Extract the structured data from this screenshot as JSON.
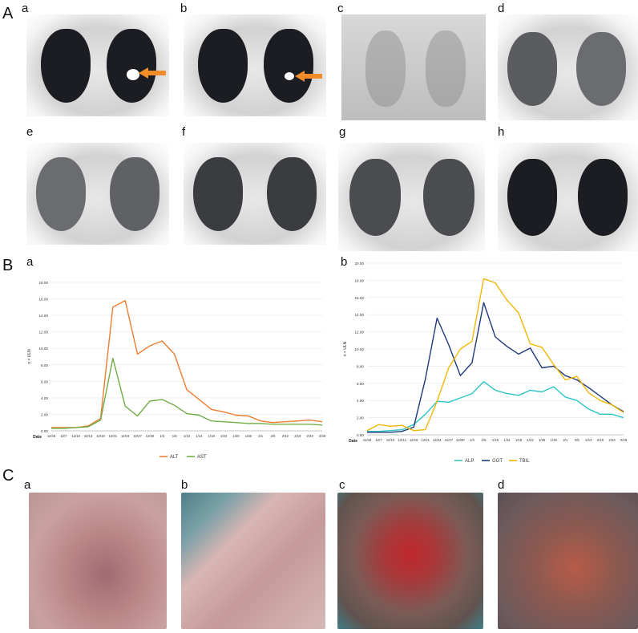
{
  "section_labels": {
    "A": "A",
    "B": "B",
    "C": "C"
  },
  "panel_labels_A": [
    "a",
    "b",
    "c",
    "d",
    "e",
    "f",
    "g",
    "h"
  ],
  "panel_labels_B": [
    "a",
    "b"
  ],
  "panel_labels_C": [
    "a",
    "b",
    "c",
    "d"
  ],
  "chart_data": [
    {
      "type": "line",
      "ylabel": "n × ULN",
      "xlabel": "Date",
      "ylim": [
        0,
        18
      ],
      "yticks": [
        "0.00",
        "2.00",
        "4.00",
        "6.00",
        "8.00",
        "10.00",
        "12.00",
        "14.00",
        "16.00",
        "18.00"
      ],
      "categories": [
        "11/28",
        "12/7",
        "12/10",
        "12/13",
        "12/18",
        "12/21",
        "12/24",
        "12/27",
        "12/30",
        "1/3",
        "1/6",
        "1/10",
        "1/14",
        "1/18",
        "1/22",
        "1/25",
        "1/28",
        "2/1",
        "2/6",
        "2/12",
        "2/19",
        "2/23",
        "2/28"
      ],
      "legend_position": "bottom",
      "series": [
        {
          "name": "ALT",
          "color": "#ed7d31",
          "values": [
            0.4,
            0.4,
            0.4,
            0.6,
            1.5,
            15.0,
            15.8,
            9.3,
            10.3,
            10.9,
            9.3,
            5.0,
            3.8,
            2.6,
            2.3,
            1.9,
            1.8,
            1.2,
            1.0,
            1.1,
            1.2,
            1.3,
            1.1
          ]
        },
        {
          "name": "AST",
          "color": "#70ad47",
          "values": [
            0.3,
            0.3,
            0.4,
            0.5,
            1.3,
            8.8,
            3.0,
            1.8,
            3.6,
            3.8,
            3.1,
            2.1,
            1.9,
            1.2,
            1.1,
            1.0,
            0.9,
            0.9,
            0.8,
            0.8,
            0.8,
            0.8,
            0.7
          ]
        }
      ]
    },
    {
      "type": "line",
      "ylabel": "n × ULN",
      "xlabel": "Date",
      "ylim": [
        0,
        20
      ],
      "yticks": [
        "0.00",
        "2.00",
        "4.00",
        "6.00",
        "8.00",
        "10.00",
        "12.00",
        "14.00",
        "16.00",
        "18.00",
        "20.00"
      ],
      "categories": [
        "11/28",
        "12/7",
        "12/10",
        "12/13",
        "12/18",
        "12/21",
        "12/24",
        "12/27",
        "12/30",
        "1/3",
        "1/6",
        "1/10",
        "1/14",
        "1/18",
        "1/22",
        "1/25",
        "1/28",
        "2/1",
        "2/6",
        "2/12",
        "2/19",
        "2/23",
        "2/28"
      ],
      "legend_position": "bottom",
      "series": [
        {
          "name": "ALP",
          "color": "#2ec4c4",
          "values": [
            0.4,
            0.4,
            0.5,
            0.6,
            1.2,
            2.4,
            3.9,
            3.8,
            4.3,
            4.8,
            6.2,
            5.2,
            4.8,
            4.6,
            5.2,
            5.0,
            5.6,
            4.4,
            4.0,
            3.0,
            2.4,
            2.4,
            2.0
          ]
        },
        {
          "name": "GGT",
          "color": "#1f3a7a",
          "values": [
            0.3,
            0.3,
            0.3,
            0.4,
            0.9,
            6.5,
            13.6,
            10.5,
            6.9,
            8.4,
            15.4,
            11.4,
            10.3,
            9.4,
            10.1,
            7.8,
            8.0,
            6.9,
            6.4,
            5.5,
            4.5,
            3.5,
            2.7
          ]
        },
        {
          "name": "TBIL",
          "color": "#f2b705",
          "values": [
            0.5,
            1.2,
            1.0,
            1.1,
            0.5,
            0.6,
            3.9,
            7.8,
            10.0,
            10.9,
            18.2,
            17.7,
            15.7,
            14.2,
            10.6,
            10.2,
            8.2,
            6.4,
            6.8,
            4.9,
            4.0,
            3.5,
            2.6
          ]
        }
      ]
    }
  ]
}
